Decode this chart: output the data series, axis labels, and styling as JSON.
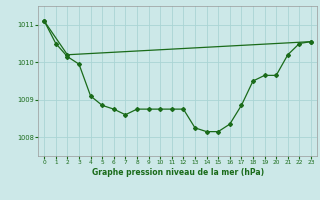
{
  "xlabel": "Graphe pression niveau de la mer (hPa)",
  "bg_color": "#cce8e8",
  "grid_color": "#aad4d4",
  "line_color": "#1a6b1a",
  "ylim": [
    1007.5,
    1011.5
  ],
  "xlim": [
    -0.5,
    23.5
  ],
  "yticks": [
    1008,
    1009,
    1010,
    1011
  ],
  "xticks": [
    0,
    1,
    2,
    3,
    4,
    5,
    6,
    7,
    8,
    9,
    10,
    11,
    12,
    13,
    14,
    15,
    16,
    17,
    18,
    19,
    20,
    21,
    22,
    23
  ],
  "series1_x": [
    0,
    1,
    2,
    3,
    4,
    5,
    6,
    7,
    8,
    9,
    10,
    11,
    12,
    13,
    14,
    15,
    16,
    17,
    18,
    19,
    20,
    21,
    22,
    23
  ],
  "series1_y": [
    1011.1,
    1010.5,
    1010.15,
    1009.95,
    1009.1,
    1008.85,
    1008.75,
    1008.6,
    1008.75,
    1008.75,
    1008.75,
    1008.75,
    1008.75,
    1008.25,
    1008.15,
    1008.15,
    1008.35,
    1008.85,
    1009.5,
    1009.65,
    1009.65,
    1010.2,
    1010.5,
    1010.55
  ],
  "series2_x": [
    0,
    2,
    23
  ],
  "series2_y": [
    1011.1,
    1010.2,
    1010.55
  ]
}
